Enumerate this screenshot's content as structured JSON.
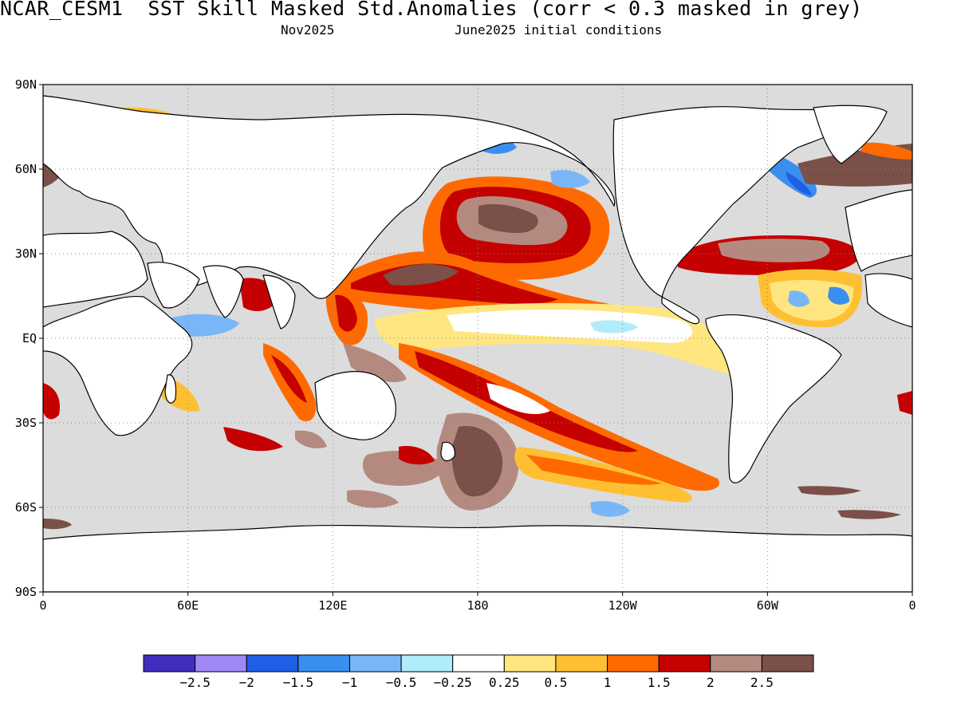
{
  "title": "NCAR_CESM1  SST Skill Masked Std.Anomalies (corr < 0.3 masked in grey)",
  "subtitle_left": "Nov2025",
  "subtitle_right": "June2025 initial conditions",
  "axes": {
    "y_ticks": [
      "90N",
      "60N",
      "30N",
      "EQ",
      "30S",
      "60S",
      "90S"
    ],
    "x_ticks": [
      "0",
      "60E",
      "120E",
      "180",
      "120W",
      "60W",
      "0"
    ]
  },
  "colorbar": {
    "labels": [
      "-2.5",
      "-2",
      "-1.5",
      "-1",
      "-0.5",
      "-0.25",
      "0.25",
      "0.5",
      "1",
      "1.5",
      "2",
      "2.5"
    ],
    "colors": [
      "#3f2dbd",
      "#9f88f5",
      "#1f5fe6",
      "#3a8fee",
      "#79b6f7",
      "#b0ecfb",
      "#ffffff",
      "#ffe680",
      "#ffbf33",
      "#ff6a00",
      "#c40000",
      "#b48a80",
      "#7a5048"
    ]
  },
  "colors": {
    "ocean_masked": "#dcdcdc",
    "land": "#ffffff",
    "coastline": "#000000"
  }
}
